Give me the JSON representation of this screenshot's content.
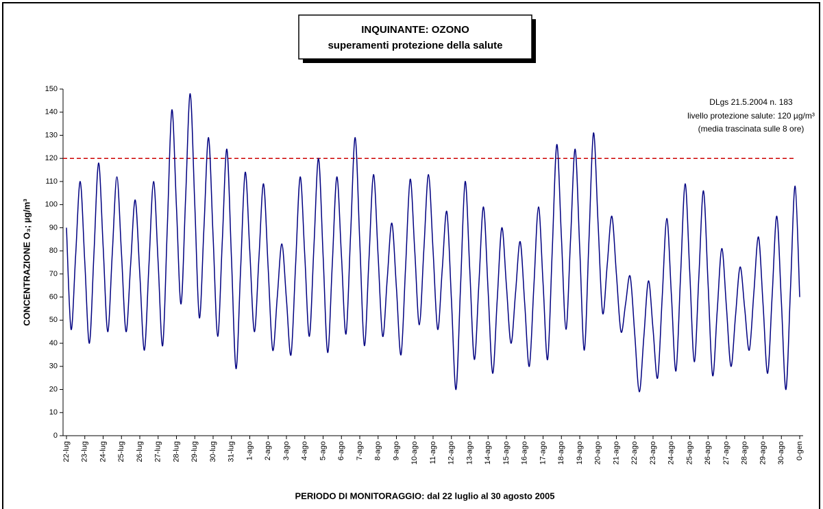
{
  "chart_data": {
    "type": "line",
    "title": "INQUINANTE: OZONO",
    "subtitle": "superamenti protezione della salute",
    "annotations": [
      "DLgs 21.5.2004 n. 183",
      "livello protezione salute: 120 µg/m³",
      "(media trascinata sulle 8 ore)"
    ],
    "y_label": "CONCENTRAZIONE O₃; µg/m³",
    "x_label": "PERIODO DI MONITORAGGIO: dal 22 luglio al 30 agosto 2005",
    "categories": [
      "22-lug",
      null,
      null,
      null,
      "23-lug",
      null,
      null,
      null,
      "24-lug",
      null,
      null,
      null,
      "25-lug",
      null,
      null,
      null,
      "26-lug",
      null,
      null,
      null,
      "27-lug",
      null,
      null,
      null,
      "28-lug",
      null,
      null,
      null,
      "29-lug",
      null,
      null,
      null,
      "30-lug",
      null,
      null,
      null,
      "31-lug",
      null,
      null,
      null,
      "1-ago",
      null,
      null,
      null,
      "2-ago",
      null,
      null,
      null,
      "3-ago",
      null,
      null,
      null,
      "4-ago",
      null,
      null,
      null,
      "5-ago",
      null,
      null,
      null,
      "6-ago",
      null,
      null,
      null,
      "7-ago",
      null,
      null,
      null,
      "8-ago",
      null,
      null,
      null,
      "9-ago",
      null,
      null,
      null,
      "10-ago",
      null,
      null,
      null,
      "11-ago",
      null,
      null,
      null,
      "12-ago",
      null,
      null,
      null,
      "13-ago",
      null,
      null,
      null,
      "14-ago",
      null,
      null,
      null,
      "15-ago",
      null,
      null,
      null,
      "16-ago",
      null,
      null,
      null,
      "17-ago",
      null,
      null,
      null,
      "18-ago",
      null,
      null,
      null,
      "19-ago",
      null,
      null,
      null,
      "20-ago",
      null,
      null,
      null,
      "21-ago",
      null,
      null,
      null,
      "22-ago",
      null,
      null,
      null,
      "23-ago",
      null,
      null,
      null,
      "24-ago",
      null,
      null,
      null,
      "25-ago",
      null,
      null,
      null,
      "26-ago",
      null,
      null,
      null,
      "27-ago",
      null,
      null,
      null,
      "28-ago",
      null,
      null,
      null,
      "29-ago",
      null,
      null,
      null,
      "30-ago",
      null,
      null,
      null,
      "0-gen"
    ],
    "series": [
      {
        "name": "O3",
        "color": "#000080",
        "values": [
          90,
          46,
          78,
          110,
          75,
          40,
          79,
          118,
          82,
          45,
          79,
          112,
          79,
          45,
          74,
          102,
          70,
          37,
          74,
          110,
          75,
          39,
          90,
          141,
          99,
          57,
          103,
          148,
          100,
          51,
          90,
          129,
          86,
          43,
          84,
          124,
          77,
          29,
          72,
          114,
          80,
          45,
          77,
          109,
          73,
          37,
          60,
          83,
          59,
          35,
          74,
          112,
          78,
          43,
          82,
          120,
          78,
          36,
          74,
          112,
          78,
          44,
          87,
          129,
          84,
          39,
          76,
          113,
          78,
          43,
          68,
          92,
          64,
          35,
          73,
          111,
          80,
          48,
          81,
          113,
          80,
          46,
          72,
          97,
          59,
          20,
          65,
          110,
          72,
          33,
          66,
          99,
          63,
          27,
          59,
          90,
          65,
          40,
          62,
          84,
          57,
          30,
          65,
          99,
          66,
          33,
          80,
          126,
          86,
          46,
          85,
          124,
          81,
          37,
          84,
          131,
          92,
          53,
          74,
          95,
          70,
          45,
          57,
          69,
          44,
          19,
          43,
          67,
          46,
          25,
          60,
          94,
          61,
          28,
          69,
          109,
          71,
          32,
          69,
          106,
          66,
          26,
          54,
          81,
          56,
          30,
          52,
          73,
          55,
          37,
          62,
          86,
          57,
          27,
          61,
          95,
          58,
          20,
          64,
          108,
          60
        ]
      }
    ],
    "threshold": {
      "value": 120,
      "color": "#cc0000"
    },
    "ylim": [
      0,
      150
    ],
    "yticks": [
      0,
      10,
      20,
      30,
      40,
      50,
      60,
      70,
      80,
      90,
      100,
      110,
      120,
      130,
      140,
      150
    ],
    "grid": false
  }
}
